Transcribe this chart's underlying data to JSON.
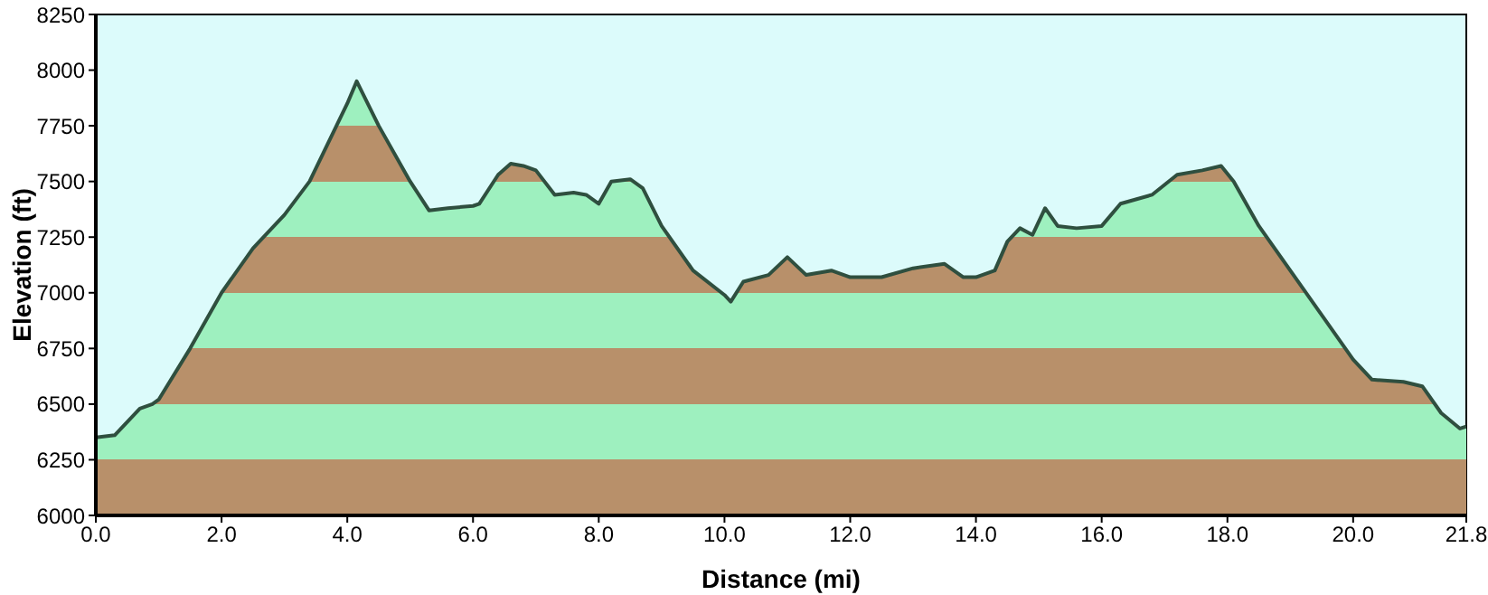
{
  "chart_data": {
    "type": "area",
    "xlabel": "Distance   (mi)",
    "ylabel": "Elevation (ft)",
    "x": [
      0,
      0.3,
      0.7,
      0.9,
      1,
      1.5,
      2,
      2.5,
      3,
      3.4,
      4,
      4.15,
      4.5,
      5,
      5.3,
      5.6,
      6,
      6.1,
      6.4,
      6.6,
      6.8,
      7,
      7.3,
      7.6,
      7.8,
      8,
      8.2,
      8.5,
      8.7,
      9,
      9.5,
      10,
      10.1,
      10.3,
      10.7,
      11,
      11.3,
      11.7,
      12,
      12.5,
      13,
      13.5,
      13.8,
      14,
      14.3,
      14.5,
      14.7,
      14.9,
      15.1,
      15.3,
      15.6,
      16,
      16.3,
      16.8,
      17.2,
      17.6,
      17.9,
      18.1,
      18.5,
      19,
      19.5,
      20,
      20.3,
      20.8,
      21.1,
      21.4,
      21.7,
      21.8
    ],
    "series": [
      {
        "color": "#2f4f3f",
        "values": [
          6350,
          6360,
          6480,
          6500,
          6520,
          6750,
          7000,
          7200,
          7350,
          7500,
          7850,
          7950,
          7750,
          7500,
          7370,
          7380,
          7390,
          7400,
          7530,
          7580,
          7570,
          7550,
          7440,
          7450,
          7440,
          7400,
          7500,
          7510,
          7470,
          7300,
          7100,
          6990,
          6960,
          7050,
          7080,
          7160,
          7080,
          7100,
          7070,
          7070,
          7110,
          7130,
          7070,
          7070,
          7100,
          7230,
          7290,
          7260,
          7380,
          7300,
          7290,
          7300,
          7400,
          7440,
          7530,
          7550,
          7570,
          7500,
          7300,
          7100,
          6900,
          6700,
          6610,
          6600,
          6580,
          6460,
          6390,
          6400
        ]
      }
    ],
    "xlim": [
      0,
      21.8
    ],
    "xticks": [
      {
        "value": 0,
        "label": "0.0"
      },
      {
        "value": 2,
        "label": "2.0"
      },
      {
        "value": 4,
        "label": "4.0"
      },
      {
        "value": 6,
        "label": "6.0"
      },
      {
        "value": 8,
        "label": "8.0"
      },
      {
        "value": 10,
        "label": "10.0"
      },
      {
        "value": 12,
        "label": "12.0"
      },
      {
        "value": 14,
        "label": "14.0"
      },
      {
        "value": 16,
        "label": "16.0"
      },
      {
        "value": 18,
        "label": "18.0"
      },
      {
        "value": 20,
        "label": "20.0"
      },
      {
        "value": 21.8,
        "label": "21.8"
      }
    ],
    "ylim": [
      6000,
      8250
    ],
    "yticks": [
      6000,
      6250,
      6500,
      6750,
      7000,
      7250,
      7500,
      7750,
      8000,
      8250
    ],
    "grid": false,
    "legend": false
  }
}
